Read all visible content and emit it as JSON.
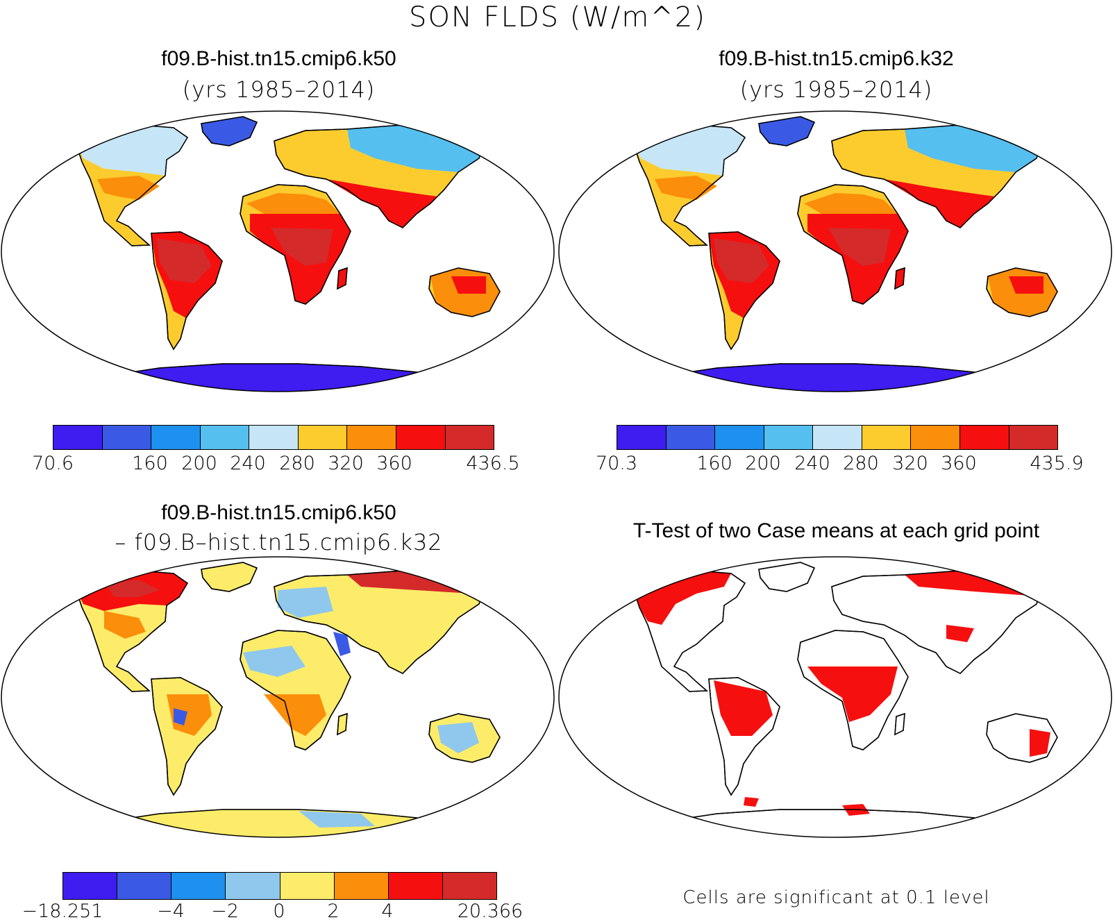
{
  "main_title": "SON FLDS (W/m^2)",
  "colors": {
    "abs": [
      "#3f1cf0",
      "#3a5ae6",
      "#1e90f0",
      "#55bff0",
      "#c6e6f7",
      "#fccc2e",
      "#fb8e0a",
      "#f60f0f",
      "#d42a2a"
    ],
    "diff": [
      "#3f1cf0",
      "#3a5ae6",
      "#1e90f0",
      "#8fc8ec",
      "#fcec6a",
      "#fb8e0a",
      "#f60f0f",
      "#d42a2a"
    ],
    "sig": "#f60f0f",
    "land_outline": "#000000"
  },
  "panels": [
    {
      "id": "case1",
      "title": "f09.B-hist.tn15.cmip6.k50",
      "subtitle": "(yrs 1985–2014)",
      "colorbar_labels": [
        "70.6",
        "160",
        "200",
        "240",
        "280",
        "320",
        "360",
        "436.5"
      ]
    },
    {
      "id": "case2",
      "title": "f09.B-hist.tn15.cmip6.k32",
      "subtitle": "(yrs 1985–2014)",
      "colorbar_labels": [
        "70.3",
        "160",
        "200",
        "240",
        "280",
        "320",
        "360",
        "435.9"
      ]
    },
    {
      "id": "diff",
      "title": "f09.B-hist.tn15.cmip6.k50",
      "subtitle": "– f09.B–hist.tn15.cmip6.k32",
      "colorbar_labels": [
        "−18.251",
        "−4",
        "−2",
        "0",
        "2",
        "4",
        "20.366"
      ]
    },
    {
      "id": "ttest",
      "title": "T-Test of two Case means at each grid point",
      "footnote": "Cells are significant at 0.1 level"
    }
  ]
}
